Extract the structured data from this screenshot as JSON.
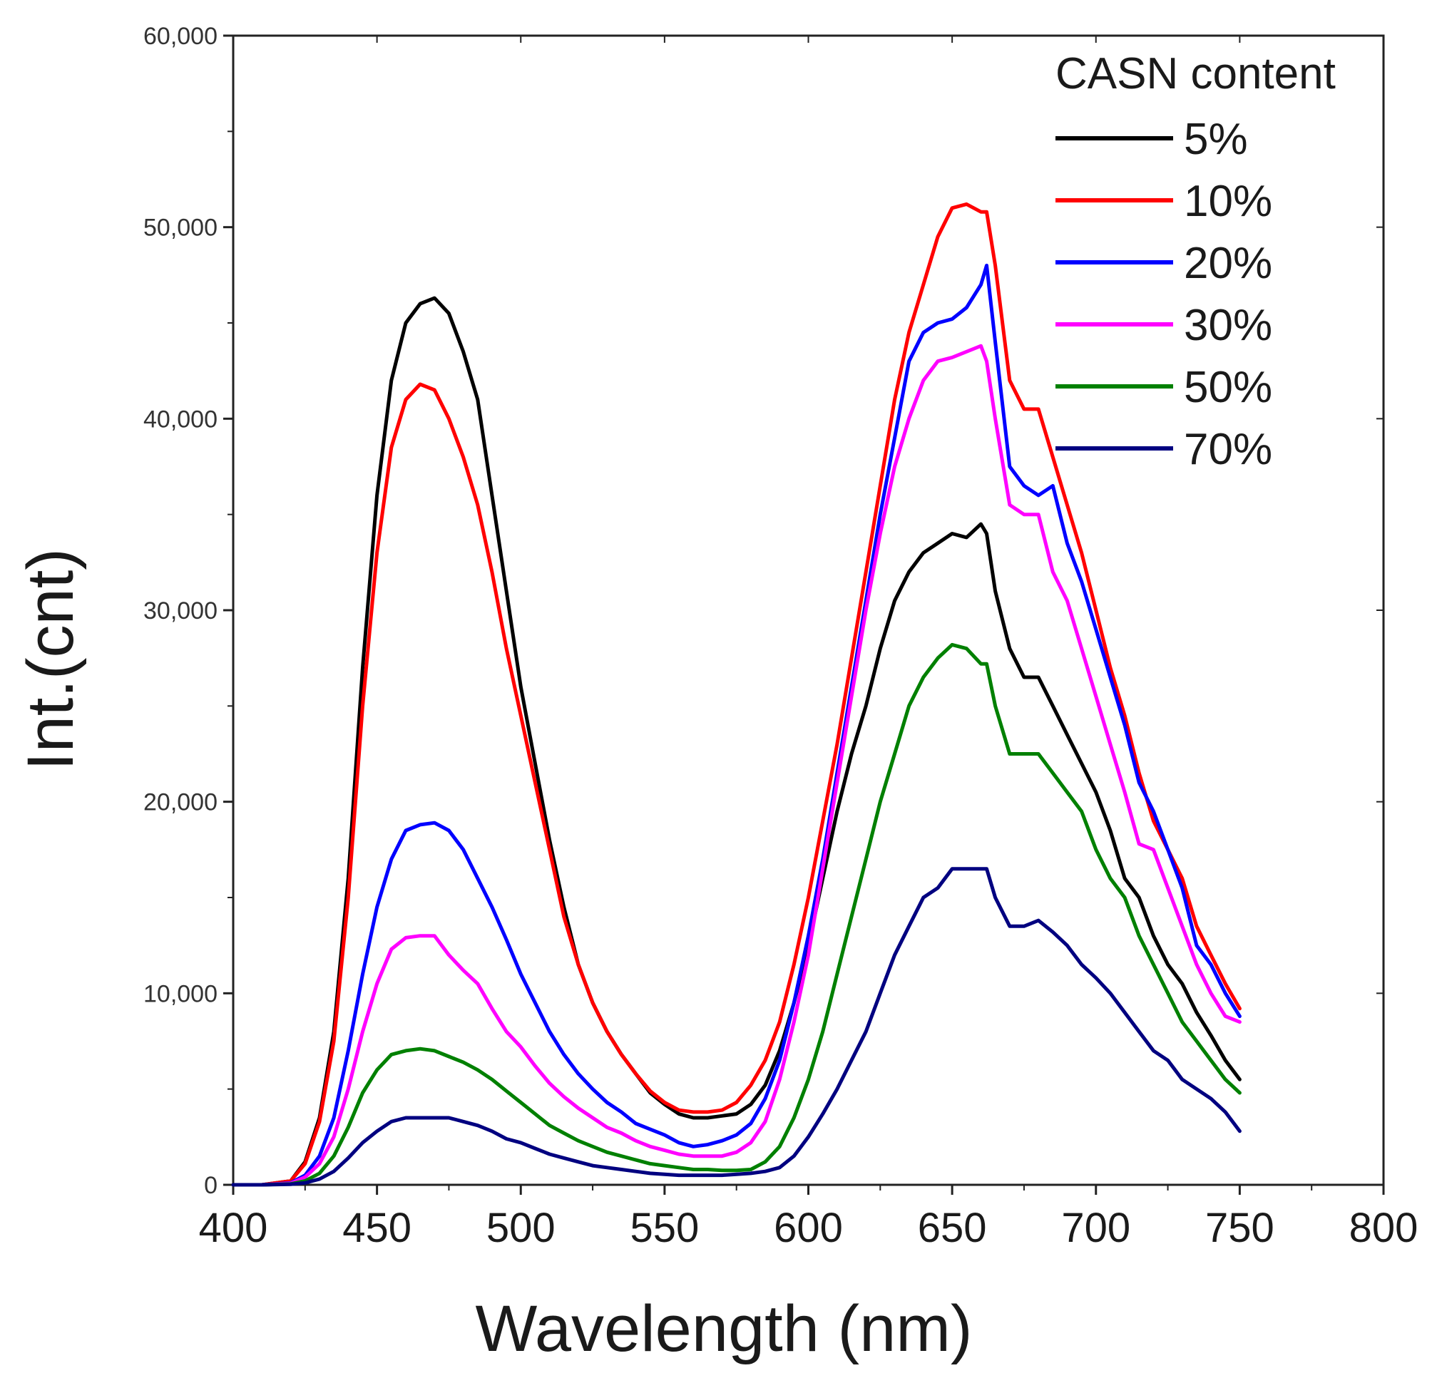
{
  "chart_data": {
    "type": "line",
    "title": "",
    "xlabel": "Wavelength (nm)",
    "ylabel": "Int.(cnt)",
    "xlim": [
      400,
      800
    ],
    "ylim": [
      0,
      60000
    ],
    "x_ticks": [
      "400",
      "450",
      "500",
      "550",
      "600",
      "650",
      "700",
      "750",
      "800"
    ],
    "y_ticks": [
      "0",
      "10,000",
      "20,000",
      "30,000",
      "40,000",
      "50,000",
      "60,000"
    ],
    "legend": {
      "title": "CASN content",
      "position": "top-right"
    },
    "x": [
      400,
      410,
      420,
      425,
      430,
      435,
      440,
      445,
      450,
      455,
      460,
      465,
      470,
      475,
      480,
      485,
      490,
      495,
      500,
      505,
      510,
      515,
      520,
      525,
      530,
      535,
      540,
      545,
      550,
      555,
      560,
      565,
      570,
      575,
      580,
      585,
      590,
      595,
      600,
      605,
      610,
      615,
      620,
      625,
      630,
      635,
      640,
      645,
      650,
      655,
      660,
      662,
      665,
      670,
      675,
      680,
      685,
      690,
      695,
      700,
      705,
      710,
      715,
      720,
      725,
      730,
      735,
      740,
      745,
      750
    ],
    "series": [
      {
        "name": "5%",
        "color": "#000000",
        "values": [
          0,
          0,
          200,
          1200,
          3500,
          8000,
          16000,
          27000,
          36000,
          42000,
          45000,
          46000,
          46300,
          45500,
          43500,
          41000,
          36000,
          31000,
          26000,
          22000,
          18000,
          14500,
          11500,
          9500,
          8000,
          6800,
          5800,
          4800,
          4200,
          3700,
          3500,
          3500,
          3600,
          3700,
          4200,
          5200,
          7000,
          9500,
          12500,
          16000,
          19500,
          22500,
          25000,
          28000,
          30500,
          32000,
          33000,
          33500,
          34000,
          33800,
          34500,
          34000,
          31000,
          28000,
          26500,
          26500,
          25000,
          23500,
          22000,
          20500,
          18500,
          16000,
          15000,
          13000,
          11500,
          10500,
          9000,
          7800,
          6500,
          5500
        ]
      },
      {
        "name": "10%",
        "color": "#ff0000",
        "values": [
          0,
          0,
          200,
          1100,
          3300,
          7500,
          15000,
          25000,
          33000,
          38500,
          41000,
          41800,
          41500,
          40000,
          38000,
          35500,
          32000,
          28000,
          24500,
          21000,
          17500,
          14000,
          11500,
          9500,
          8000,
          6800,
          5800,
          4900,
          4300,
          3900,
          3800,
          3800,
          3900,
          4300,
          5200,
          6500,
          8500,
          11500,
          15000,
          19000,
          23000,
          27500,
          32000,
          36500,
          41000,
          44500,
          47000,
          49500,
          51000,
          51200,
          50800,
          50800,
          48000,
          42000,
          40500,
          40500,
          38000,
          35500,
          33000,
          30000,
          27000,
          24500,
          21500,
          19000,
          17500,
          16000,
          13500,
          12000,
          10500,
          9200
        ]
      },
      {
        "name": "20%",
        "color": "#0000ff",
        "values": [
          0,
          0,
          100,
          500,
          1500,
          3500,
          7000,
          11000,
          14500,
          17000,
          18500,
          18800,
          18900,
          18500,
          17500,
          16000,
          14500,
          12800,
          11000,
          9500,
          8000,
          6800,
          5800,
          5000,
          4300,
          3800,
          3200,
          2900,
          2600,
          2200,
          2000,
          2100,
          2300,
          2600,
          3200,
          4500,
          6500,
          9500,
          13000,
          17000,
          21500,
          26000,
          30500,
          35000,
          39000,
          43000,
          44500,
          45000,
          45200,
          45800,
          47000,
          48000,
          44000,
          37500,
          36500,
          36000,
          36500,
          33500,
          31500,
          29000,
          26500,
          24000,
          21000,
          19500,
          17500,
          15500,
          12500,
          11500,
          10000,
          8800
        ]
      },
      {
        "name": "30%",
        "color": "#ff00ff",
        "values": [
          0,
          0,
          80,
          400,
          1100,
          2500,
          5000,
          8000,
          10500,
          12300,
          12900,
          13000,
          13000,
          12000,
          11200,
          10500,
          9200,
          8000,
          7200,
          6200,
          5300,
          4600,
          4000,
          3500,
          3000,
          2700,
          2300,
          2000,
          1800,
          1600,
          1500,
          1500,
          1500,
          1700,
          2200,
          3300,
          5500,
          8500,
          12000,
          16500,
          21000,
          25500,
          30000,
          34000,
          37500,
          40000,
          42000,
          43000,
          43200,
          43500,
          43800,
          43000,
          40000,
          35500,
          35000,
          35000,
          32000,
          30500,
          28000,
          25500,
          23000,
          20500,
          17800,
          17500,
          15500,
          13500,
          11500,
          10000,
          8800,
          8500
        ]
      },
      {
        "name": "50%",
        "color": "#008000",
        "values": [
          0,
          0,
          50,
          200,
          600,
          1500,
          3000,
          4800,
          6000,
          6800,
          7000,
          7100,
          7000,
          6700,
          6400,
          6000,
          5500,
          4900,
          4300,
          3700,
          3100,
          2700,
          2300,
          2000,
          1700,
          1500,
          1300,
          1100,
          1000,
          900,
          800,
          800,
          750,
          750,
          800,
          1200,
          2000,
          3500,
          5500,
          8000,
          11000,
          14000,
          17000,
          20000,
          22500,
          25000,
          26500,
          27500,
          28200,
          28000,
          27200,
          27200,
          25000,
          22500,
          22500,
          22500,
          21500,
          20500,
          19500,
          17500,
          16000,
          15000,
          13000,
          11500,
          10000,
          8500,
          7500,
          6500,
          5500,
          4800
        ]
      },
      {
        "name": "70%",
        "color": "#000080",
        "values": [
          0,
          0,
          30,
          100,
          300,
          700,
          1400,
          2200,
          2800,
          3300,
          3500,
          3500,
          3500,
          3500,
          3300,
          3100,
          2800,
          2400,
          2200,
          1900,
          1600,
          1400,
          1200,
          1000,
          900,
          800,
          700,
          600,
          550,
          500,
          500,
          500,
          500,
          550,
          600,
          700,
          900,
          1500,
          2500,
          3700,
          5000,
          6500,
          8000,
          10000,
          12000,
          13500,
          15000,
          15500,
          16500,
          16500,
          16500,
          16500,
          15000,
          13500,
          13500,
          13800,
          13200,
          12500,
          11500,
          10800,
          10000,
          9000,
          8000,
          7000,
          6500,
          5500,
          5000,
          4500,
          3800,
          2800
        ]
      }
    ]
  }
}
